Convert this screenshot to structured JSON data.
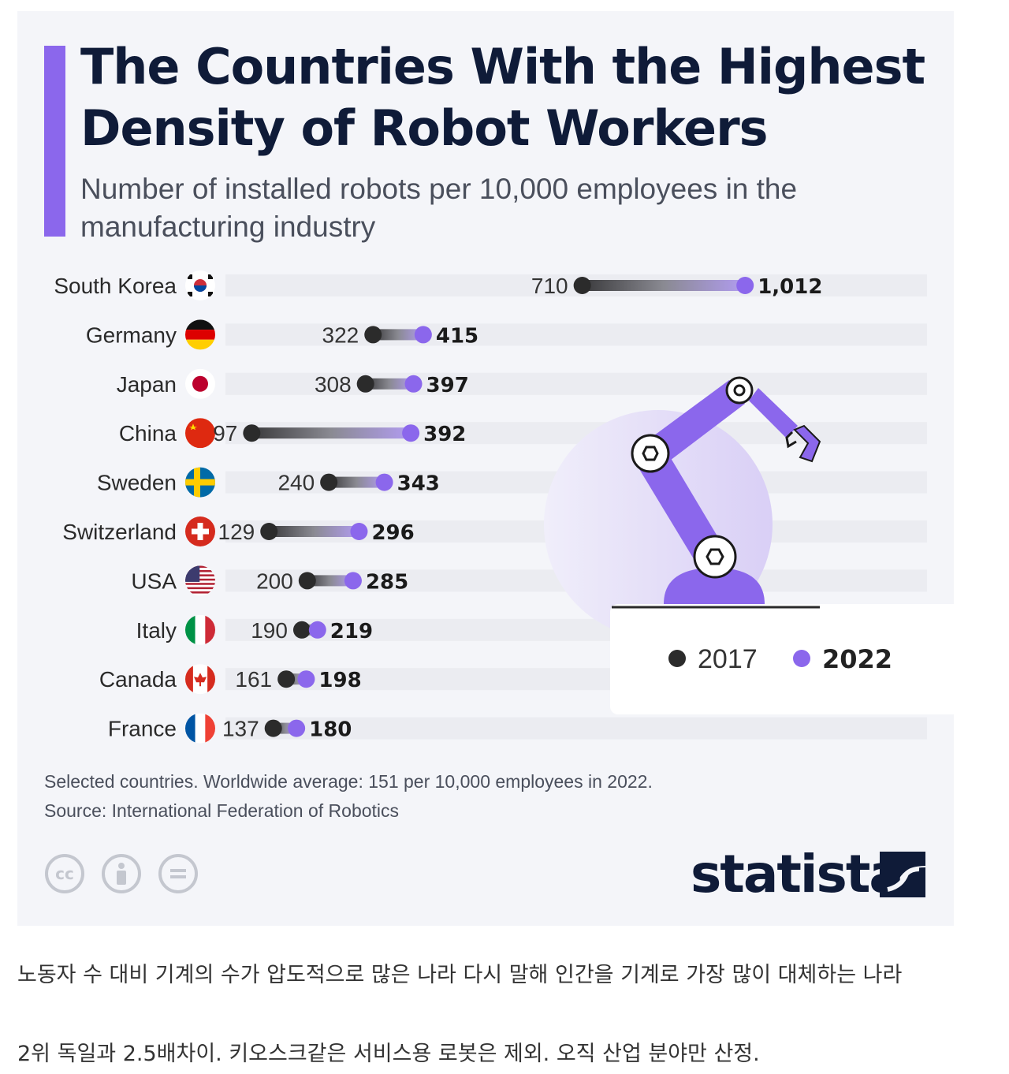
{
  "title": "The Countries With the Highest Density of Robot Workers",
  "subtitle": "Number of installed robots per 10,000 employees in the manufacturing industry",
  "notes": {
    "line1": "Selected countries. Worldwide average: 151 per 10,000 employees in 2022.",
    "line2": "Source: International Federation of Robotics"
  },
  "license_icons": [
    "cc-icon",
    "by-icon",
    "nd-icon"
  ],
  "brand": "statista",
  "caption": {
    "line1": "노동자 수 대비 기계의 수가 압도적으로 많은 나라 다시 말해 인간을 기계로 가장 많이 대체하는 나라",
    "line2": "2위 독일과 2.5배차이. 키오스크같은 서비스용 로봇은 제외. 오직 산업 분야만 산정."
  },
  "colors": {
    "accent": "#8b67ec",
    "dot_2017": "#2b2b2b",
    "dot_2022": "#8b67ec",
    "title": "#0f1b38",
    "background": "#f4f5f9"
  },
  "chart_data": {
    "type": "dumbbell",
    "title": "The Countries With the Highest Density of Robot Workers",
    "subtitle": "Number of installed robots per 10,000 employees in the manufacturing industry",
    "categories": [
      "South Korea",
      "Germany",
      "Japan",
      "China",
      "Sweden",
      "Switzerland",
      "USA",
      "Italy",
      "Canada",
      "France"
    ],
    "flags": [
      "south-korea-flag-icon",
      "germany-flag-icon",
      "japan-flag-icon",
      "china-flag-icon",
      "sweden-flag-icon",
      "switzerland-flag-icon",
      "usa-flag-icon",
      "italy-flag-icon",
      "canada-flag-icon",
      "france-flag-icon"
    ],
    "series": [
      {
        "name": "2017",
        "values": [
          710,
          322,
          308,
          97,
          240,
          129,
          200,
          190,
          161,
          137
        ],
        "labels": [
          "710",
          "322",
          "308",
          "97",
          "240",
          "129",
          "200",
          "190",
          "161",
          "137"
        ]
      },
      {
        "name": "2022",
        "values": [
          1012,
          415,
          397,
          392,
          343,
          296,
          285,
          219,
          198,
          180
        ],
        "labels": [
          "1,012",
          "415",
          "397",
          "392",
          "343",
          "296",
          "285",
          "219",
          "198",
          "180"
        ]
      }
    ],
    "legend_position": "right",
    "grid": false
  }
}
